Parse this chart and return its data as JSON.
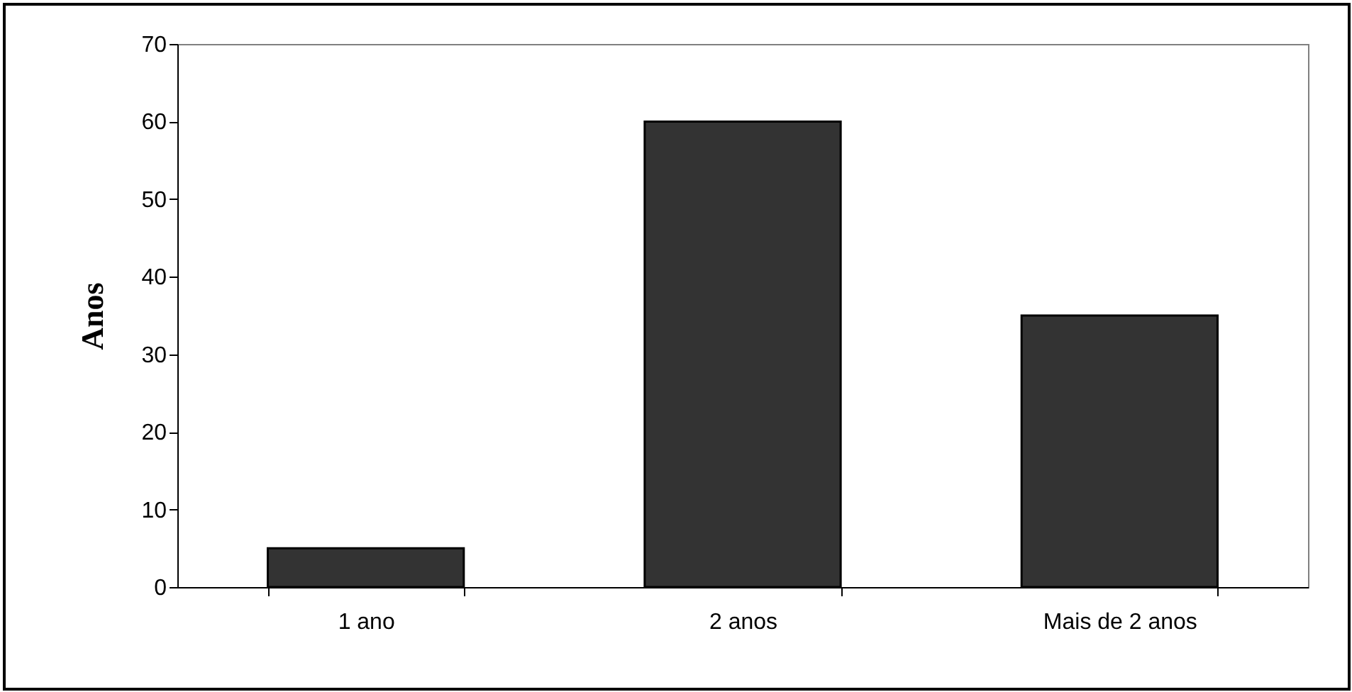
{
  "chart_data": {
    "type": "bar",
    "ylabel": "Anos",
    "categories": [
      "1 ano",
      "2 anos",
      "Mais de 2 anos"
    ],
    "values": [
      5,
      60,
      35
    ],
    "color": "#333333",
    "ylim": [
      0,
      70
    ],
    "yticks": [
      0,
      10,
      20,
      30,
      40,
      50,
      60,
      70
    ],
    "grid": false
  }
}
